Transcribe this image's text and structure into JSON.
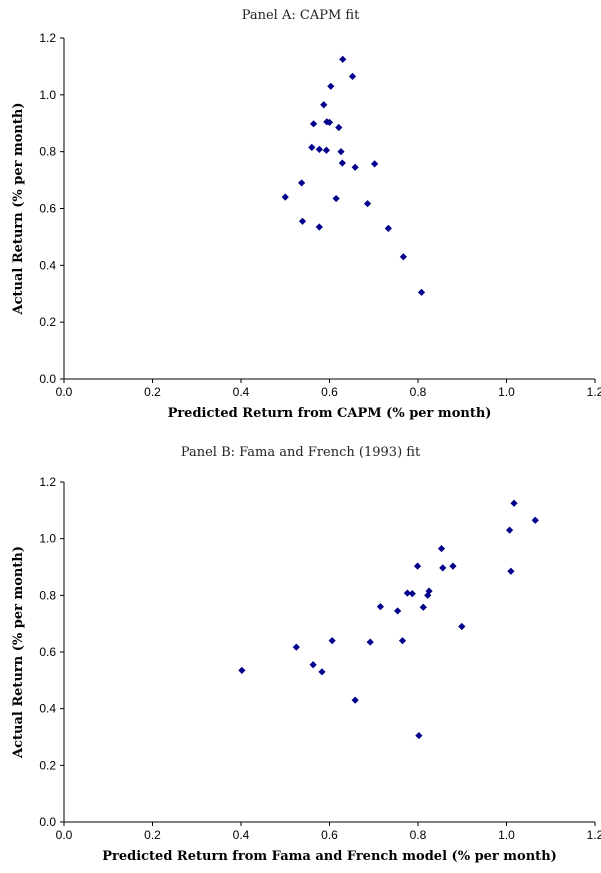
{
  "colors": {
    "marker": "#00008B",
    "axis": "#000000"
  },
  "chart_data": [
    {
      "type": "scatter",
      "title": "Panel A: CAPM fit",
      "xlabel": "Predicted Return from CAPM (% per month)",
      "ylabel": "Actual Return (% per month)",
      "xlim": [
        0,
        1.2
      ],
      "ylim": [
        0,
        1.2
      ],
      "xticks": [
        "0.0",
        "0.2",
        "0.4",
        "0.6",
        "0.8",
        "1.0",
        "1.2"
      ],
      "yticks": [
        "0.0",
        "0.2",
        "0.4",
        "0.6",
        "0.8",
        "1.0",
        "1.2"
      ],
      "grid": false,
      "marker": "diamond",
      "points": [
        {
          "x": 0.63,
          "y": 1.125
        },
        {
          "x": 0.652,
          "y": 1.065
        },
        {
          "x": 0.603,
          "y": 1.03
        },
        {
          "x": 0.587,
          "y": 0.965
        },
        {
          "x": 0.594,
          "y": 0.905
        },
        {
          "x": 0.6,
          "y": 0.903
        },
        {
          "x": 0.564,
          "y": 0.898
        },
        {
          "x": 0.621,
          "y": 0.885
        },
        {
          "x": 0.56,
          "y": 0.815
        },
        {
          "x": 0.577,
          "y": 0.808
        },
        {
          "x": 0.593,
          "y": 0.805
        },
        {
          "x": 0.626,
          "y": 0.8
        },
        {
          "x": 0.629,
          "y": 0.76
        },
        {
          "x": 0.702,
          "y": 0.757
        },
        {
          "x": 0.658,
          "y": 0.745
        },
        {
          "x": 0.537,
          "y": 0.69
        },
        {
          "x": 0.5,
          "y": 0.64
        },
        {
          "x": 0.615,
          "y": 0.635
        },
        {
          "x": 0.686,
          "y": 0.617
        },
        {
          "x": 0.539,
          "y": 0.555
        },
        {
          "x": 0.577,
          "y": 0.535
        },
        {
          "x": 0.733,
          "y": 0.53
        },
        {
          "x": 0.767,
          "y": 0.43
        },
        {
          "x": 0.808,
          "y": 0.305
        }
      ]
    },
    {
      "type": "scatter",
      "title": "Panel B: Fama and French (1993) fit",
      "xlabel": "Predicted Return from Fama and French model (% per month)",
      "ylabel": "Actual Return (% per month)",
      "xlim": [
        0,
        1.2
      ],
      "ylim": [
        0,
        1.2
      ],
      "xticks": [
        "0.0",
        "0.2",
        "0.4",
        "0.6",
        "0.8",
        "1.0",
        "1.2"
      ],
      "yticks": [
        "0.0",
        "0.2",
        "0.4",
        "0.6",
        "0.8",
        "1.0",
        "1.2"
      ],
      "grid": false,
      "marker": "diamond",
      "points": [
        {
          "x": 1.017,
          "y": 1.125
        },
        {
          "x": 1.065,
          "y": 1.065
        },
        {
          "x": 1.007,
          "y": 1.03
        },
        {
          "x": 0.853,
          "y": 0.965
        },
        {
          "x": 0.799,
          "y": 0.903
        },
        {
          "x": 0.879,
          "y": 0.903
        },
        {
          "x": 0.856,
          "y": 0.897
        },
        {
          "x": 1.01,
          "y": 0.885
        },
        {
          "x": 0.825,
          "y": 0.815
        },
        {
          "x": 0.776,
          "y": 0.808
        },
        {
          "x": 0.787,
          "y": 0.806
        },
        {
          "x": 0.822,
          "y": 0.8
        },
        {
          "x": 0.715,
          "y": 0.76
        },
        {
          "x": 0.812,
          "y": 0.758
        },
        {
          "x": 0.754,
          "y": 0.745
        },
        {
          "x": 0.899,
          "y": 0.69
        },
        {
          "x": 0.606,
          "y": 0.64
        },
        {
          "x": 0.765,
          "y": 0.64
        },
        {
          "x": 0.692,
          "y": 0.635
        },
        {
          "x": 0.525,
          "y": 0.617
        },
        {
          "x": 0.563,
          "y": 0.555
        },
        {
          "x": 0.402,
          "y": 0.535
        },
        {
          "x": 0.583,
          "y": 0.53
        },
        {
          "x": 0.658,
          "y": 0.43
        },
        {
          "x": 0.802,
          "y": 0.305
        }
      ]
    }
  ]
}
